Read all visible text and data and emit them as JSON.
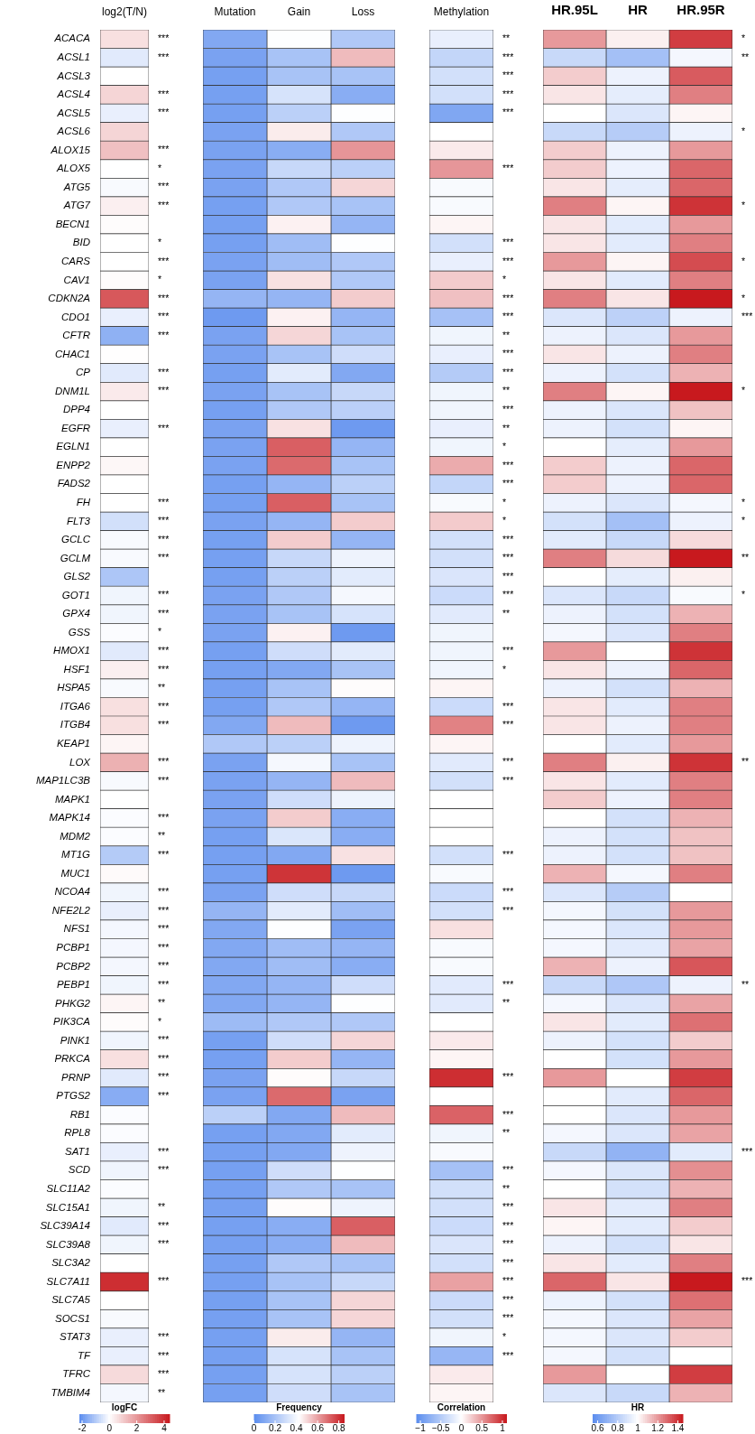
{
  "chart_data": [
    {
      "type": "heatmap",
      "categories": [
        "log2(T/N)"
      ],
      "y_categories": [
        "ACACA",
        "ACSL1",
        "ACSL3",
        "ACSL4",
        "ACSL5",
        "ACSL6",
        "ALOX15",
        "ALOX5",
        "ATG5",
        "ATG7",
        "BECN1",
        "BID",
        "CARS",
        "CAV1",
        "CDKN2A",
        "CDO1",
        "CFTR",
        "CHAC1",
        "CP",
        "DNM1L",
        "DPP4",
        "EGFR",
        "EGLN1",
        "ENPP2",
        "FADS2",
        "FH",
        "FLT3",
        "GCLC",
        "GCLM",
        "GLS2",
        "GOT1",
        "GPX4",
        "GSS",
        "HMOX1",
        "HSF1",
        "HSPA5",
        "ITGA6",
        "ITGB4",
        "KEAP1",
        "LOX",
        "MAP1LC3B",
        "MAPK1",
        "MAPK14",
        "MDM2",
        "MT1G",
        "MUC1",
        "NCOA4",
        "NFE2L2",
        "NFS1",
        "PCBP1",
        "PCBP2",
        "PEBP1",
        "PHKG2",
        "PIK3CA",
        "PINK1",
        "PRKCA",
        "PRNP",
        "PTGS2",
        "RB1",
        "RPL8",
        "SAT1",
        "SCD",
        "SLC11A2",
        "SLC15A1",
        "SLC39A14",
        "SLC39A8",
        "SLC3A2",
        "SLC7A11",
        "SLC7A5",
        "SOCS1",
        "STAT3",
        "TF",
        "TFRC",
        "TMBIM4"
      ],
      "y2_categories": [
        "***",
        "***",
        null,
        "***",
        "***",
        null,
        "***",
        "*",
        "***",
        "***",
        null,
        "*",
        "***",
        "*",
        "***",
        "***",
        "***",
        null,
        "***",
        "***",
        null,
        "***",
        null,
        null,
        null,
        "***",
        "***",
        "***",
        "***",
        null,
        "***",
        "***",
        "*",
        "***",
        "***",
        "**",
        "***",
        "***",
        null,
        "***",
        "***",
        null,
        "***",
        "**",
        "***",
        null,
        "***",
        "***",
        "***",
        "***",
        "***",
        "***",
        "**",
        "*",
        "***",
        "***",
        "***",
        "***",
        null,
        null,
        "***",
        "***",
        null,
        "**",
        "***",
        "***",
        null,
        "***",
        null,
        null,
        "***",
        "***",
        "***",
        "**"
      ],
      "cells": [
        [
          0.6
        ],
        [
          -0.4
        ],
        [
          0
        ],
        [
          0.8
        ],
        [
          -0.3
        ],
        [
          0.8
        ],
        [
          1.2
        ],
        [
          0
        ],
        [
          -0.1
        ],
        [
          0.3
        ],
        [
          0.05
        ],
        [
          0
        ],
        [
          0
        ],
        [
          0.05
        ],
        [
          3.2
        ],
        [
          -0.3
        ],
        [
          -1.5
        ],
        [
          0.02
        ],
        [
          -0.4
        ],
        [
          0.4
        ],
        [
          0
        ],
        [
          -0.3
        ],
        [
          0
        ],
        [
          0.15
        ],
        [
          0
        ],
        [
          0
        ],
        [
          -0.6
        ],
        [
          -0.1
        ],
        [
          -0.1
        ],
        [
          -1.1
        ],
        [
          -0.2
        ],
        [
          -0.2
        ],
        [
          -0.05
        ],
        [
          -0.4
        ],
        [
          0.3
        ],
        [
          -0.1
        ],
        [
          0.6
        ],
        [
          0.6
        ],
        [
          0.2
        ],
        [
          1.5
        ],
        [
          -0.1
        ],
        [
          0
        ],
        [
          -0.05
        ],
        [
          -0.05
        ],
        [
          -1.0
        ],
        [
          0.1
        ],
        [
          -0.2
        ],
        [
          -0.3
        ],
        [
          -0.15
        ],
        [
          -0.15
        ],
        [
          -0.15
        ],
        [
          -0.2
        ],
        [
          0.2
        ],
        [
          0.05
        ],
        [
          -0.2
        ],
        [
          0.6
        ],
        [
          -0.4
        ],
        [
          -1.6
        ],
        [
          -0.05
        ],
        [
          -0.05
        ],
        [
          -0.3
        ],
        [
          -0.2
        ],
        [
          -0.05
        ],
        [
          -0.2
        ],
        [
          -0.4
        ],
        [
          -0.2
        ],
        [
          0
        ],
        [
          4.0
        ],
        [
          0
        ],
        [
          -0.1
        ],
        [
          -0.3
        ],
        [
          -0.3
        ],
        [
          0.7
        ],
        [
          -0.15
        ]
      ],
      "clim": [
        -2.2,
        4.4
      ],
      "cticks": [
        -2,
        0,
        2,
        4
      ],
      "clabel": "logFC"
    },
    {
      "type": "heatmap",
      "categories": [
        "Mutation",
        "Gain",
        "Loss"
      ],
      "tick_labels": "x",
      "y_categories": [
        null,
        null,
        null,
        null,
        null,
        null,
        null,
        null,
        null,
        null,
        null,
        null,
        null,
        null,
        null,
        null,
        null,
        null,
        null,
        null,
        null,
        null,
        null,
        null,
        null,
        null,
        null,
        null,
        null,
        null,
        null,
        null,
        null,
        null,
        null,
        null,
        null,
        null,
        null,
        null,
        null,
        null,
        null,
        null,
        null,
        null,
        null,
        null,
        null,
        null,
        null,
        null,
        null,
        null,
        null,
        null,
        null,
        null,
        null,
        null,
        null,
        null,
        null,
        null,
        null,
        null,
        null,
        null,
        null,
        null,
        null,
        null,
        null,
        null
      ],
      "cells": [
        [
          0.1,
          0.42,
          0.22
        ],
        [
          0.08,
          0.2,
          0.55
        ],
        [
          0.07,
          0.2,
          0.2
        ],
        [
          0.07,
          0.32,
          0.12
        ],
        [
          0.07,
          0.25,
          0.42
        ],
        [
          0.08,
          0.46,
          0.22
        ],
        [
          0.08,
          0.12,
          0.62
        ],
        [
          0.08,
          0.28,
          0.25
        ],
        [
          0.08,
          0.22,
          0.5
        ],
        [
          0.07,
          0.22,
          0.2
        ],
        [
          0.07,
          0.45,
          0.15
        ],
        [
          0.07,
          0.18,
          0.42
        ],
        [
          0.08,
          0.18,
          0.22
        ],
        [
          0.08,
          0.48,
          0.22
        ],
        [
          0.15,
          0.15,
          0.52
        ],
        [
          0.05,
          0.45,
          0.15
        ],
        [
          0.08,
          0.5,
          0.2
        ],
        [
          0.08,
          0.2,
          0.3
        ],
        [
          0.07,
          0.35,
          0.1
        ],
        [
          0.08,
          0.2,
          0.28
        ],
        [
          0.07,
          0.22,
          0.25
        ],
        [
          0.08,
          0.48,
          0.05
        ],
        [
          0.08,
          0.72,
          0.15
        ],
        [
          0.08,
          0.7,
          0.2
        ],
        [
          0.07,
          0.15,
          0.25
        ],
        [
          0.07,
          0.72,
          0.2
        ],
        [
          0.08,
          0.15,
          0.52
        ],
        [
          0.07,
          0.52,
          0.15
        ],
        [
          0.07,
          0.28,
          0.38
        ],
        [
          0.07,
          0.25,
          0.35
        ],
        [
          0.08,
          0.22,
          0.4
        ],
        [
          0.08,
          0.2,
          0.32
        ],
        [
          0.08,
          0.45,
          0.05
        ],
        [
          0.07,
          0.3,
          0.35
        ],
        [
          0.07,
          0.1,
          0.2
        ],
        [
          0.07,
          0.2,
          0.43
        ],
        [
          0.07,
          0.22,
          0.15
        ],
        [
          0.1,
          0.55,
          0.05
        ],
        [
          0.22,
          0.25,
          0.38
        ],
        [
          0.08,
          0.4,
          0.2
        ],
        [
          0.08,
          0.15,
          0.55
        ],
        [
          0.08,
          0.3,
          0.38
        ],
        [
          0.08,
          0.52,
          0.12
        ],
        [
          0.07,
          0.33,
          0.12
        ],
        [
          0.07,
          0.1,
          0.48
        ],
        [
          0.07,
          0.8,
          0.05
        ],
        [
          0.08,
          0.3,
          0.28
        ],
        [
          0.15,
          0.35,
          0.18
        ],
        [
          0.1,
          0.42,
          0.08
        ],
        [
          0.1,
          0.18,
          0.15
        ],
        [
          0.1,
          0.18,
          0.12
        ],
        [
          0.1,
          0.15,
          0.3
        ],
        [
          0.1,
          0.15,
          0.42
        ],
        [
          0.17,
          0.22,
          0.22
        ],
        [
          0.07,
          0.3,
          0.5
        ],
        [
          0.07,
          0.52,
          0.15
        ],
        [
          0.08,
          0.43,
          0.28
        ],
        [
          0.08,
          0.7,
          0.08
        ],
        [
          0.25,
          0.1,
          0.55
        ],
        [
          0.07,
          0.1,
          0.35
        ],
        [
          0.07,
          0.1,
          0.38
        ],
        [
          0.07,
          0.3,
          0.42
        ],
        [
          0.07,
          0.22,
          0.2
        ],
        [
          0.07,
          0.43,
          0.38
        ],
        [
          0.07,
          0.12,
          0.72
        ],
        [
          0.07,
          0.12,
          0.55
        ],
        [
          0.07,
          0.22,
          0.2
        ],
        [
          0.07,
          0.2,
          0.28
        ],
        [
          0.07,
          0.2,
          0.5
        ],
        [
          0.07,
          0.2,
          0.5
        ],
        [
          0.07,
          0.46,
          0.15
        ],
        [
          0.07,
          0.32,
          0.2
        ],
        [
          0.07,
          0.32,
          0.25
        ],
        [
          0.07,
          0.3,
          0.2
        ]
      ],
      "clim": [
        0,
        0.85
      ],
      "cticks": [
        0,
        0.2,
        0.4,
        0.6,
        0.8
      ],
      "clabel": "Frequency"
    },
    {
      "type": "heatmap",
      "categories": [
        "Methylation"
      ],
      "tick_labels": "x",
      "y_categories": [
        null,
        null,
        null,
        null,
        null,
        null,
        null,
        null,
        null,
        null,
        null,
        null,
        null,
        null,
        null,
        null,
        null,
        null,
        null,
        null,
        null,
        null,
        null,
        null,
        null,
        null,
        null,
        null,
        null,
        null,
        null,
        null,
        null,
        null,
        null,
        null,
        null,
        null,
        null,
        null,
        null,
        null,
        null,
        null,
        null,
        null,
        null,
        null,
        null,
        null,
        null,
        null,
        null,
        null,
        null,
        null,
        null,
        null,
        null,
        null,
        null,
        null,
        null,
        null,
        null,
        null,
        null,
        null,
        null,
        null,
        null,
        null,
        null,
        null
      ],
      "y2_categories": [
        "**",
        "***",
        "***",
        "***",
        "***",
        null,
        null,
        "***",
        null,
        null,
        null,
        "***",
        "***",
        "*",
        "***",
        "***",
        "**",
        "***",
        "***",
        "**",
        "***",
        "**",
        "*",
        "***",
        "***",
        "*",
        "*",
        "***",
        "***",
        "***",
        "***",
        "**",
        null,
        "***",
        "*",
        null,
        "***",
        "***",
        null,
        "***",
        "***",
        null,
        null,
        null,
        "***",
        null,
        "***",
        "***",
        null,
        null,
        null,
        "***",
        "**",
        null,
        null,
        null,
        "***",
        null,
        "***",
        "**",
        null,
        "***",
        "**",
        "***",
        "***",
        "***",
        "***",
        "***",
        "***",
        "***",
        "*",
        "***",
        null,
        null
      ],
      "cells": [
        [
          -0.15
        ],
        [
          -0.4
        ],
        [
          -0.3
        ],
        [
          -0.3
        ],
        [
          -0.85
        ],
        [
          0
        ],
        [
          0.1
        ],
        [
          0.5
        ],
        [
          -0.05
        ],
        [
          -0.05
        ],
        [
          0.05
        ],
        [
          -0.3
        ],
        [
          -0.15
        ],
        [
          0.25
        ],
        [
          0.3
        ],
        [
          -0.6
        ],
        [
          -0.1
        ],
        [
          -0.15
        ],
        [
          -0.5
        ],
        [
          -0.1
        ],
        [
          -0.1
        ],
        [
          -0.15
        ],
        [
          -0.1
        ],
        [
          0.4
        ],
        [
          -0.4
        ],
        [
          -0.05
        ],
        [
          0.25
        ],
        [
          -0.3
        ],
        [
          -0.3
        ],
        [
          -0.25
        ],
        [
          -0.35
        ],
        [
          -0.2
        ],
        [
          -0.1
        ],
        [
          -0.1
        ],
        [
          -0.1
        ],
        [
          0.05
        ],
        [
          -0.35
        ],
        [
          0.6
        ],
        [
          0.05
        ],
        [
          -0.2
        ],
        [
          -0.3
        ],
        [
          0
        ],
        [
          0
        ],
        [
          0
        ],
        [
          -0.3
        ],
        [
          -0.05
        ],
        [
          -0.35
        ],
        [
          -0.3
        ],
        [
          0.15
        ],
        [
          -0.05
        ],
        [
          -0.05
        ],
        [
          -0.2
        ],
        [
          -0.2
        ],
        [
          0
        ],
        [
          0.1
        ],
        [
          0.05
        ],
        [
          1.0
        ],
        [
          0
        ],
        [
          0.75
        ],
        [
          -0.1
        ],
        [
          -0.05
        ],
        [
          -0.6
        ],
        [
          -0.3
        ],
        [
          -0.3
        ],
        [
          -0.35
        ],
        [
          -0.25
        ],
        [
          -0.3
        ],
        [
          0.45
        ],
        [
          -0.35
        ],
        [
          -0.3
        ],
        [
          -0.1
        ],
        [
          -0.7
        ],
        [
          0.1
        ],
        [
          0.05
        ]
      ],
      "clim": [
        -1.1,
        1.1
      ],
      "cticks": [
        {
          "value": -1,
          "label": "−1"
        },
        {
          "value": -0.5,
          "label": "−0.5"
        },
        0,
        0.5,
        1
      ],
      "clabel": "Correlation"
    },
    {
      "type": "heatmap",
      "categories": [
        "HR.95L",
        "HR",
        "HR.95R"
      ],
      "tick_labels": "x",
      "y_categories": [
        null,
        null,
        null,
        null,
        null,
        null,
        null,
        null,
        null,
        null,
        null,
        null,
        null,
        null,
        null,
        null,
        null,
        null,
        null,
        null,
        null,
        null,
        null,
        null,
        null,
        null,
        null,
        null,
        null,
        null,
        null,
        null,
        null,
        null,
        null,
        null,
        null,
        null,
        null,
        null,
        null,
        null,
        null,
        null,
        null,
        null,
        null,
        null,
        null,
        null,
        null,
        null,
        null,
        null,
        null,
        null,
        null,
        null,
        null,
        null,
        null,
        null,
        null,
        null,
        null,
        null,
        null,
        null,
        null,
        null,
        null,
        null,
        null,
        null
      ],
      "y2_categories": [
        "*",
        "**",
        null,
        null,
        null,
        "*",
        null,
        null,
        null,
        "*",
        null,
        null,
        "*",
        null,
        "*",
        "***",
        null,
        null,
        null,
        "*",
        null,
        null,
        null,
        null,
        null,
        "*",
        "*",
        null,
        "**",
        null,
        "*",
        null,
        null,
        null,
        null,
        null,
        null,
        null,
        null,
        "**",
        null,
        null,
        null,
        null,
        null,
        null,
        null,
        null,
        null,
        null,
        null,
        "**",
        null,
        null,
        null,
        null,
        null,
        null,
        null,
        null,
        "***",
        null,
        null,
        null,
        null,
        null,
        null,
        "***",
        null,
        null,
        null,
        null,
        null,
        null
      ],
      "cells": [
        [
          1.2,
          1.03,
          1.38
        ],
        [
          0.85,
          0.75,
          0.97
        ],
        [
          1.1,
          0.95,
          1.32
        ],
        [
          1.05,
          0.93,
          1.25
        ],
        [
          1.0,
          0.9,
          1.02
        ],
        [
          0.85,
          0.8,
          0.95
        ],
        [
          1.1,
          0.95,
          1.2
        ],
        [
          1.1,
          0.95,
          1.3
        ],
        [
          1.05,
          0.93,
          1.3
        ],
        [
          1.25,
          1.02,
          1.4
        ],
        [
          1.05,
          0.92,
          1.2
        ],
        [
          1.05,
          0.92,
          1.25
        ],
        [
          1.2,
          1.02,
          1.35
        ],
        [
          1.05,
          0.92,
          1.25
        ],
        [
          1.25,
          1.05,
          1.45
        ],
        [
          0.9,
          0.82,
          0.95
        ],
        [
          0.95,
          0.9,
          1.2
        ],
        [
          1.05,
          0.95,
          1.25
        ],
        [
          0.95,
          0.88,
          1.15
        ],
        [
          1.25,
          1.02,
          1.45
        ],
        [
          0.95,
          0.9,
          1.12
        ],
        [
          0.95,
          0.88,
          1.02
        ],
        [
          1.0,
          0.93,
          1.2
        ],
        [
          1.1,
          0.95,
          1.3
        ],
        [
          1.1,
          0.95,
          1.3
        ],
        [
          0.95,
          0.9,
          0.97
        ],
        [
          0.88,
          0.75,
          0.95
        ],
        [
          0.92,
          0.85,
          1.07
        ],
        [
          1.25,
          1.07,
          1.45
        ],
        [
          1.0,
          0.93,
          1.03
        ],
        [
          0.9,
          0.85,
          0.98
        ],
        [
          0.95,
          0.88,
          1.15
        ],
        [
          0.97,
          0.9,
          1.25
        ],
        [
          1.2,
          1.0,
          1.4
        ],
        [
          1.05,
          0.95,
          1.3
        ],
        [
          0.95,
          0.88,
          1.15
        ],
        [
          1.05,
          0.92,
          1.25
        ],
        [
          1.05,
          0.95,
          1.25
        ],
        [
          1.0,
          0.92,
          1.2
        ],
        [
          1.25,
          1.03,
          1.4
        ],
        [
          1.05,
          0.92,
          1.25
        ],
        [
          1.1,
          0.95,
          1.25
        ],
        [
          1.0,
          0.88,
          1.15
        ],
        [
          0.95,
          0.88,
          1.12
        ],
        [
          0.95,
          0.88,
          1.12
        ],
        [
          1.15,
          0.97,
          1.25
        ],
        [
          0.9,
          0.8,
          1.0
        ],
        [
          0.97,
          0.88,
          1.2
        ],
        [
          0.97,
          0.9,
          1.2
        ],
        [
          0.97,
          0.92,
          1.18
        ],
        [
          1.15,
          0.95,
          1.33
        ],
        [
          0.85,
          0.78,
          0.95
        ],
        [
          0.97,
          0.9,
          1.18
        ],
        [
          1.05,
          0.92,
          1.28
        ],
        [
          0.95,
          0.88,
          1.1
        ],
        [
          1.0,
          0.88,
          1.2
        ],
        [
          1.2,
          1.0,
          1.38
        ],
        [
          1.0,
          0.92,
          1.3
        ],
        [
          1.0,
          0.9,
          1.2
        ],
        [
          0.97,
          0.9,
          1.18
        ],
        [
          0.85,
          0.7,
          0.92
        ],
        [
          0.97,
          0.9,
          1.22
        ],
        [
          1.0,
          0.88,
          1.15
        ],
        [
          1.05,
          0.92,
          1.25
        ],
        [
          1.02,
          0.92,
          1.1
        ],
        [
          0.95,
          0.88,
          1.05
        ],
        [
          1.05,
          0.92,
          1.25
        ],
        [
          1.3,
          1.05,
          1.45
        ],
        [
          0.95,
          0.88,
          1.28
        ],
        [
          0.97,
          0.9,
          1.18
        ],
        [
          0.97,
          0.9,
          1.1
        ],
        [
          0.97,
          0.88,
          1.0
        ],
        [
          1.2,
          1.0,
          1.38
        ],
        [
          0.9,
          0.85,
          1.15
        ]
      ],
      "clim": [
        0.55,
        1.45
      ],
      "cticks": [
        0.6,
        0.8,
        1,
        1.2,
        1.4
      ],
      "clabel": "HR"
    }
  ]
}
